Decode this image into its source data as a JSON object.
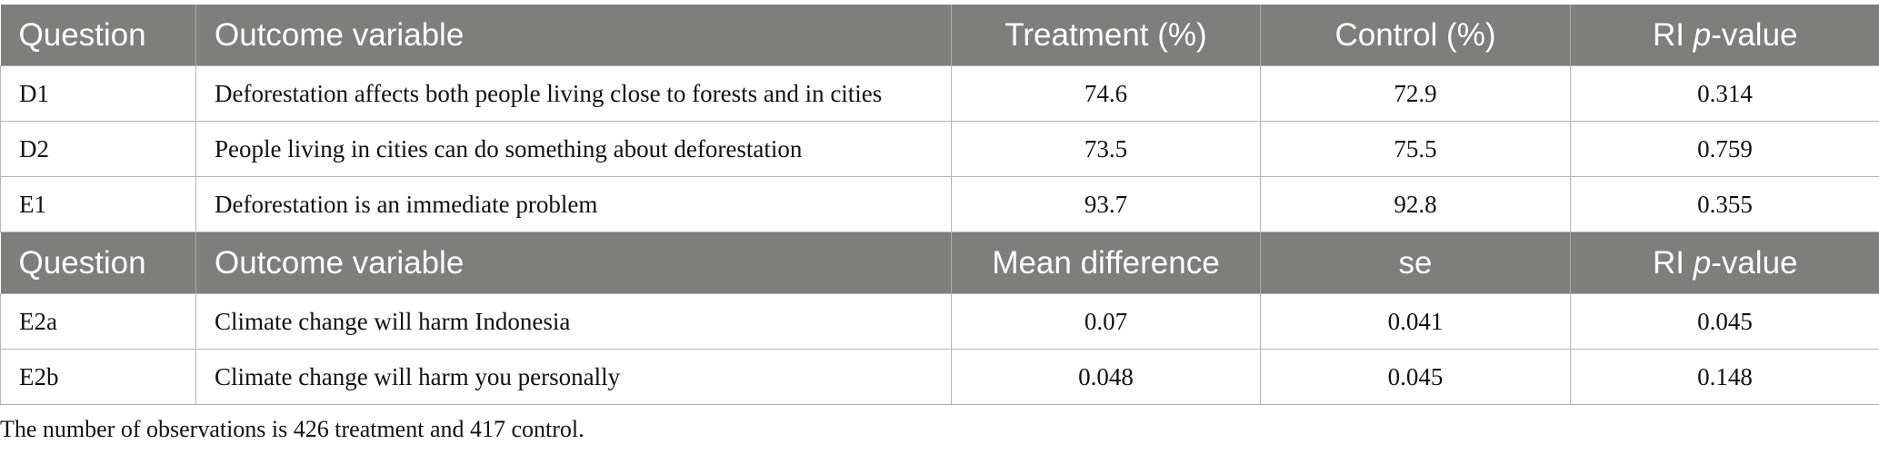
{
  "header1": {
    "question": "Question",
    "outcome": "Outcome variable",
    "col3": "Treatment (%)",
    "col4": "Control (%)",
    "col5_prefix": "RI ",
    "col5_italic": "p",
    "col5_suffix": "-value"
  },
  "section1_rows": [
    {
      "q": "D1",
      "outcome": "Deforestation affects both people living close to forests and in cities",
      "v1": "74.6",
      "v2": "72.9",
      "v3": "0.314"
    },
    {
      "q": "D2",
      "outcome": "People living in cities can do something about deforestation",
      "v1": "73.5",
      "v2": "75.5",
      "v3": "0.759"
    },
    {
      "q": "E1",
      "outcome": "Deforestation is an immediate problem",
      "v1": "93.7",
      "v2": "92.8",
      "v3": "0.355"
    }
  ],
  "header2": {
    "question": "Question",
    "outcome": "Outcome variable",
    "col3": "Mean difference",
    "col4": "se",
    "col5_prefix": "RI ",
    "col5_italic": "p",
    "col5_suffix": "-value"
  },
  "section2_rows": [
    {
      "q": "E2a",
      "outcome": "Climate change will harm Indonesia",
      "v1": "0.07",
      "v2": "0.041",
      "v3": "0.045"
    },
    {
      "q": "E2b",
      "outcome": "Climate change will harm you personally",
      "v1": "0.048",
      "v2": "0.045",
      "v3": "0.148"
    }
  ],
  "footnote": "The number of observations is 426 treatment and 417 control."
}
